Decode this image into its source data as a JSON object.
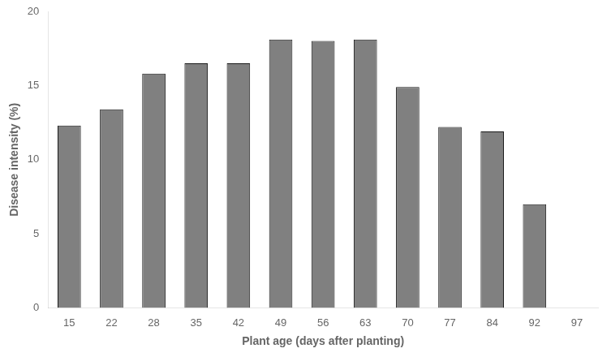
{
  "chart_data": {
    "type": "bar",
    "categories": [
      "15",
      "22",
      "28",
      "35",
      "42",
      "49",
      "56",
      "63",
      "70",
      "77",
      "84",
      "92",
      "97"
    ],
    "values": [
      12.3,
      13.4,
      15.8,
      16.5,
      16.5,
      18.1,
      18.0,
      18.1,
      14.9,
      12.2,
      11.9,
      7.0,
      0
    ],
    "color": "#808080",
    "xlabel": "Plant age (days after planting)",
    "ylabel": "Disease intensity (%)",
    "ylim": [
      0,
      20
    ],
    "yticks": [
      0,
      5,
      10,
      15,
      20
    ],
    "grid": false
  }
}
